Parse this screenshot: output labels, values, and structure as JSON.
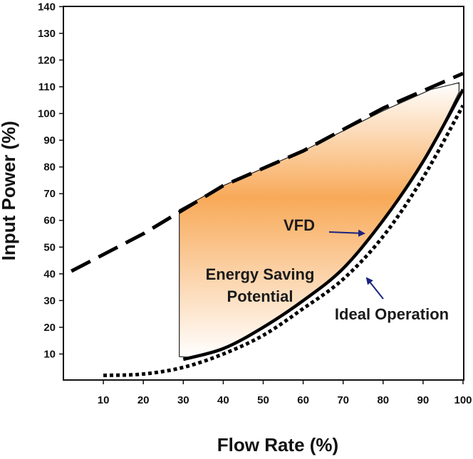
{
  "chart_data": {
    "type": "line",
    "xlabel": "Flow Rate (%)",
    "ylabel": "Input Power (%)",
    "xlim": [
      0,
      100
    ],
    "ylim": [
      0,
      140
    ],
    "x_ticks": [
      10,
      20,
      30,
      40,
      50,
      60,
      70,
      80,
      90,
      100
    ],
    "y_ticks": [
      10,
      20,
      30,
      40,
      50,
      60,
      70,
      80,
      90,
      100,
      110,
      120,
      130,
      140
    ],
    "grid": false,
    "series": [
      {
        "style": "dashed",
        "x": [
          2,
          20,
          40,
          60,
          80,
          100
        ],
        "y": [
          41,
          55,
          73,
          86,
          102,
          115
        ]
      },
      {
        "name": "VFD",
        "style": "solid",
        "x": [
          30,
          40,
          50,
          60,
          70,
          80,
          90,
          100
        ],
        "y": [
          8,
          12,
          20,
          30,
          42,
          60,
          82,
          109
        ]
      },
      {
        "name": "Ideal Operation",
        "style": "dotted",
        "x": [
          10,
          20,
          30,
          40,
          50,
          60,
          70,
          80,
          90,
          100
        ],
        "y": [
          2,
          2.5,
          5,
          10,
          17,
          27,
          38,
          54,
          76,
          103
        ]
      }
    ],
    "shaded_region": {
      "label": "Energy Saving Potential",
      "color": "#f7a046",
      "upper_x": [
        29,
        40,
        60,
        80,
        92,
        99,
        99
      ],
      "upper_y": [
        64,
        73,
        86,
        101,
        109,
        111.5,
        108
      ],
      "lower_x": [
        99,
        90,
        80,
        70,
        60,
        50,
        40,
        34,
        29
      ],
      "lower_y": [
        108,
        82,
        60,
        42,
        30,
        20,
        12,
        9,
        9
      ]
    },
    "annotations": [
      {
        "text": "VFD",
        "arrow_color": "#1a237e"
      },
      {
        "text": "Energy Saving",
        "line2": "Potential"
      },
      {
        "text": "Ideal Operation",
        "arrow_color": "#1a237e"
      }
    ]
  }
}
